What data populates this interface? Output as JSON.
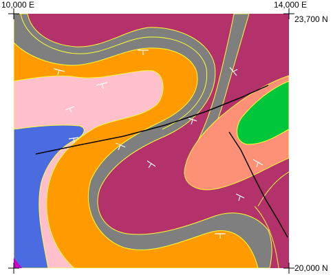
{
  "corner_labels": {
    "top_left": "10,000 E",
    "top_right": "14,000 E",
    "right_top": "23,700 N",
    "right_bottom": "20,000 N"
  },
  "units": [
    {
      "name": "maroon-unit",
      "color": "#b3326b"
    },
    {
      "name": "gray-unit",
      "color": "#7f7f7f"
    },
    {
      "name": "orange-unit",
      "color": "#ff9b00"
    },
    {
      "name": "pink-unit",
      "color": "#ffc0cc"
    },
    {
      "name": "blue-unit",
      "color": "#4b6be0"
    },
    {
      "name": "salmon-unit",
      "color": "#ff9078"
    },
    {
      "name": "green-unit",
      "color": "#00c63c"
    },
    {
      "name": "magenta-unit",
      "color": "#c800c8"
    }
  ],
  "contact_color": "#ffff33",
  "fault_color": "#000000"
}
